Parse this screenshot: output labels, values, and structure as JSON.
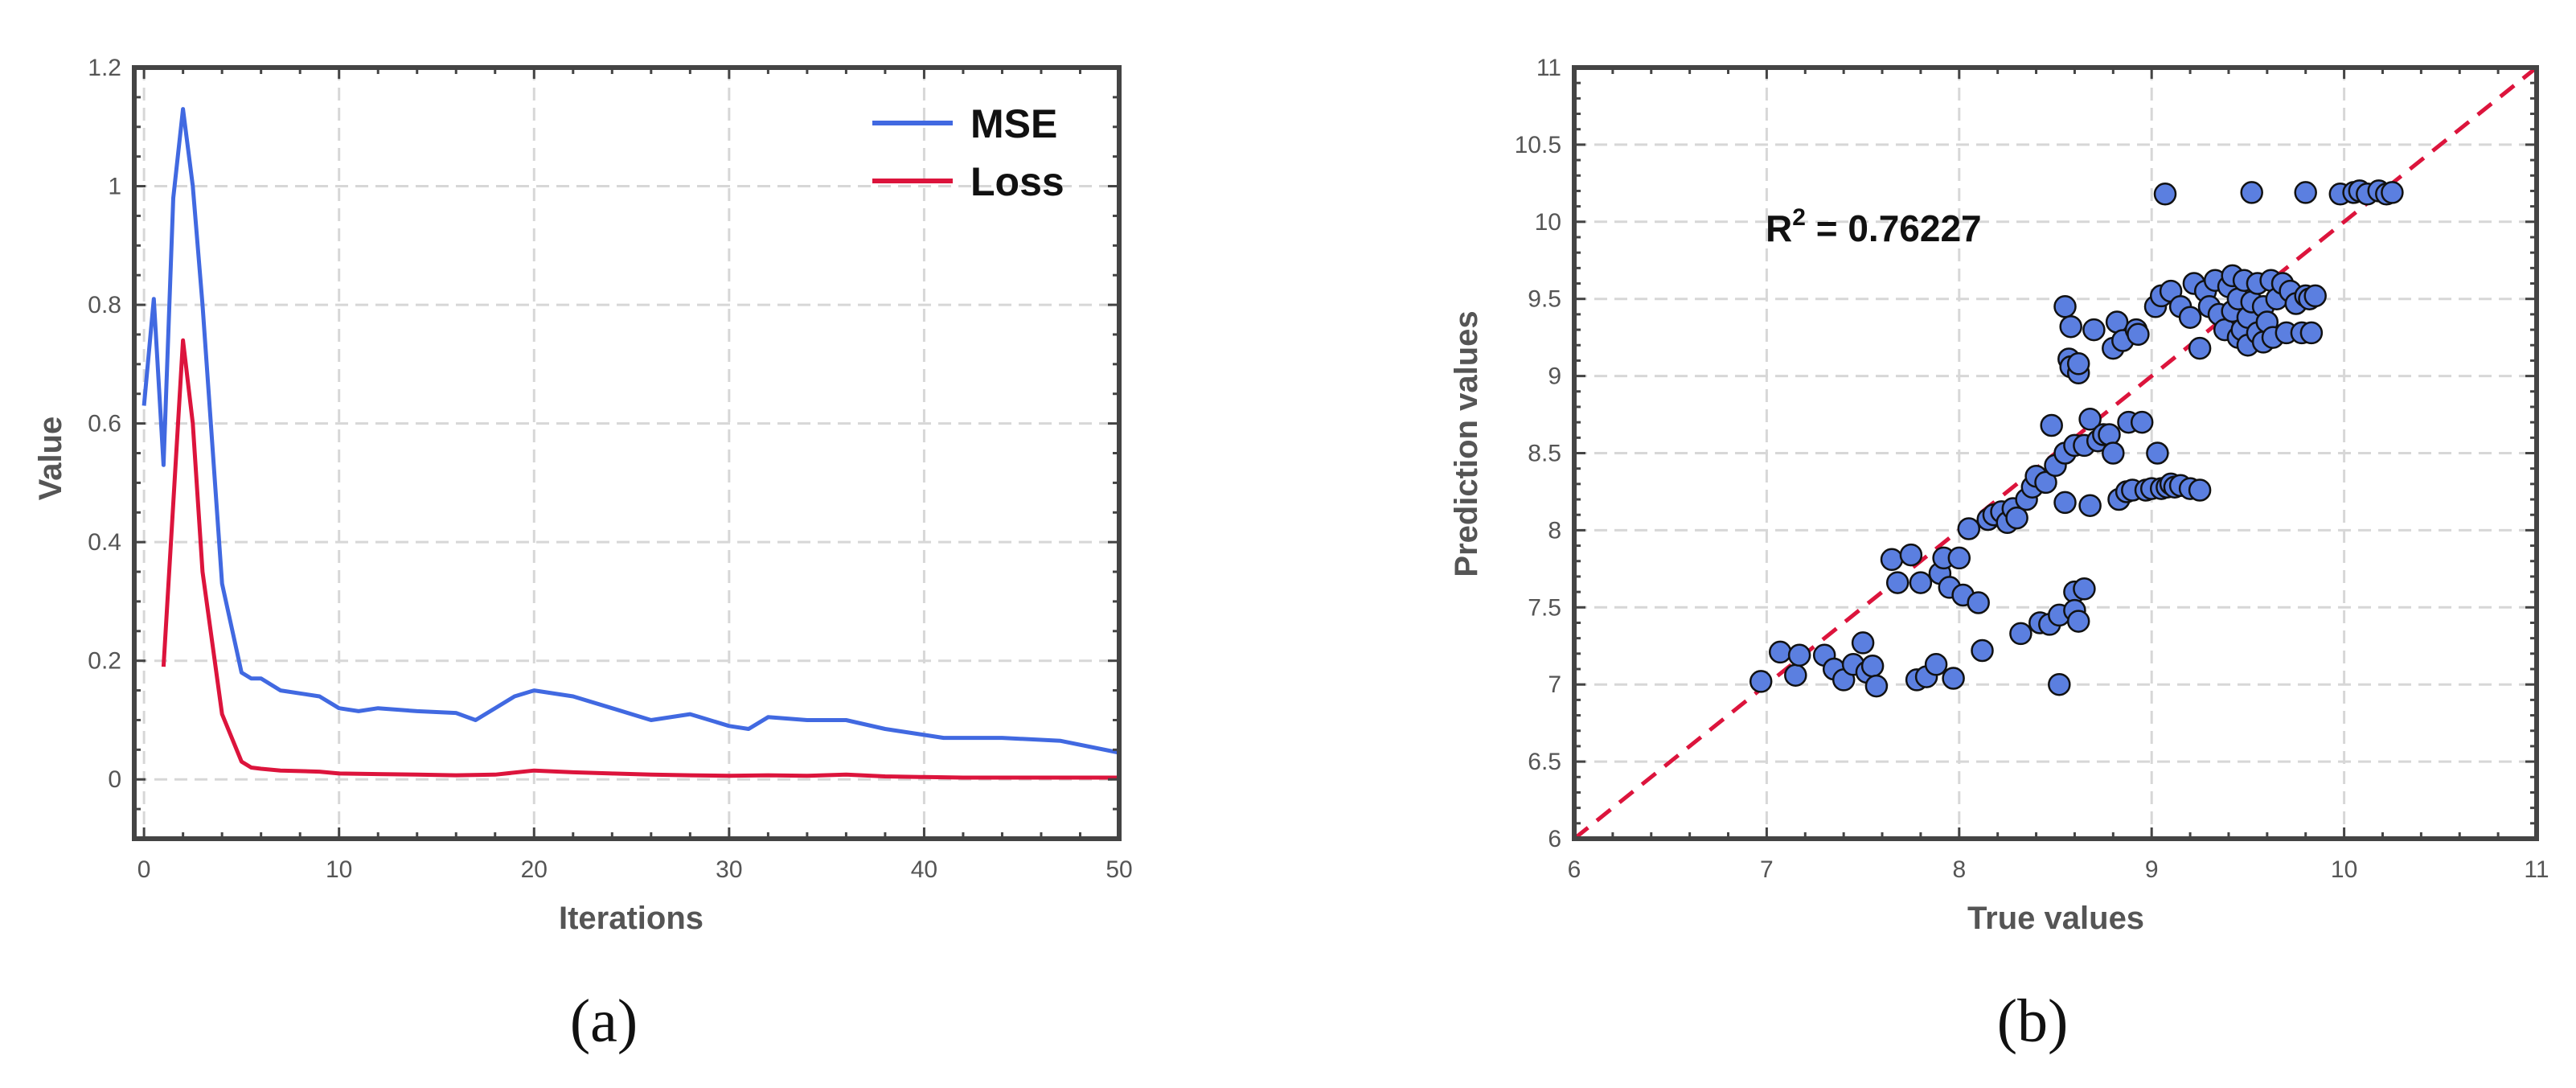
{
  "colors": {
    "mse": "#4169E1",
    "loss": "#DC143C",
    "diag": "#DC143C",
    "point_fill": "#5B7FE0",
    "point_edge": "#111111",
    "axis": "#444444",
    "grid": "#d7d7d7"
  },
  "chart_data": [
    {
      "type": "line",
      "panel_label": "(a)",
      "title": "",
      "xlabel": "Iterations",
      "ylabel": "Value",
      "xlim": [
        -0.5,
        50
      ],
      "ylim": [
        -0.1,
        1.2
      ],
      "grid": true,
      "xticks": [
        0,
        10,
        20,
        30,
        40,
        50
      ],
      "xtick_labels": [
        "0",
        "10",
        "20",
        "30",
        "40",
        "50"
      ],
      "yticks": [
        0,
        0.2,
        0.4,
        0.6,
        0.8,
        1,
        1.2
      ],
      "ytick_labels": [
        "0",
        "0.2",
        "0.4",
        "0.6",
        "0.8",
        "1",
        "1.2"
      ],
      "legend_placement": "top-right",
      "series": [
        {
          "name": "MSE",
          "x": [
            0,
            0.5,
            1,
            1.5,
            2,
            2.5,
            3,
            4,
            5,
            5.5,
            6,
            7,
            8,
            9,
            10,
            11,
            12,
            14,
            16,
            17,
            18,
            19,
            20,
            22,
            24,
            26,
            28,
            30,
            31,
            32,
            34,
            36,
            38,
            40,
            41,
            44,
            47,
            50
          ],
          "y": [
            0.63,
            0.81,
            0.53,
            0.98,
            1.13,
            1.0,
            0.8,
            0.33,
            0.18,
            0.17,
            0.17,
            0.15,
            0.145,
            0.14,
            0.12,
            0.115,
            0.12,
            0.115,
            0.112,
            0.1,
            0.12,
            0.14,
            0.15,
            0.14,
            0.12,
            0.1,
            0.11,
            0.09,
            0.085,
            0.105,
            0.1,
            0.1,
            0.085,
            0.075,
            0.07,
            0.07,
            0.065,
            0.045
          ]
        },
        {
          "name": "Loss",
          "x": [
            1,
            2,
            2.5,
            3,
            4,
            5,
            5.5,
            6,
            7,
            8,
            9,
            10,
            12,
            14,
            16,
            18,
            20,
            22,
            24,
            26,
            28,
            30,
            32,
            34,
            36,
            38,
            40,
            42,
            44,
            46,
            48,
            50
          ],
          "y": [
            0.19,
            0.74,
            0.6,
            0.35,
            0.11,
            0.03,
            0.02,
            0.018,
            0.015,
            0.014,
            0.013,
            0.01,
            0.009,
            0.008,
            0.007,
            0.008,
            0.015,
            0.012,
            0.01,
            0.008,
            0.007,
            0.006,
            0.007,
            0.006,
            0.008,
            0.005,
            0.004,
            0.003,
            0.003,
            0.003,
            0.003,
            0.003
          ]
        }
      ]
    },
    {
      "type": "scatter",
      "panel_label": "(b)",
      "title": "",
      "xlabel": "True values",
      "ylabel": "Prediction values",
      "xlim": [
        6,
        11
      ],
      "ylim": [
        6,
        11
      ],
      "grid": true,
      "xticks": [
        6,
        7,
        8,
        9,
        10,
        11
      ],
      "xtick_labels": [
        "6",
        "7",
        "8",
        "9",
        "10",
        "11"
      ],
      "yticks": [
        6,
        6.5,
        7,
        7.5,
        8,
        8.5,
        9,
        9.5,
        10,
        10.5,
        11
      ],
      "ytick_labels": [
        "6",
        "6.5",
        "7",
        "7.5",
        "8",
        "8.5",
        "9",
        "9.5",
        "10",
        "10.5",
        "11"
      ],
      "annotation": {
        "base": "R",
        "superscript": "2",
        "text": " = 0.76227"
      },
      "reference_line": {
        "from": [
          6,
          6
        ],
        "to": [
          11,
          11
        ],
        "style": "dashed"
      },
      "points": [
        [
          6.97,
          7.02
        ],
        [
          7.07,
          7.21
        ],
        [
          7.15,
          7.06
        ],
        [
          7.17,
          7.19
        ],
        [
          7.3,
          7.19
        ],
        [
          7.35,
          7.1
        ],
        [
          7.4,
          7.03
        ],
        [
          7.45,
          7.13
        ],
        [
          7.5,
          7.27
        ],
        [
          7.52,
          7.08
        ],
        [
          7.55,
          7.12
        ],
        [
          7.57,
          6.99
        ],
        [
          7.65,
          7.81
        ],
        [
          7.68,
          7.66
        ],
        [
          7.75,
          7.84
        ],
        [
          7.8,
          7.66
        ],
        [
          7.78,
          7.03
        ],
        [
          7.83,
          7.05
        ],
        [
          7.88,
          7.13
        ],
        [
          7.9,
          7.72
        ],
        [
          7.92,
          7.82
        ],
        [
          7.95,
          7.63
        ],
        [
          7.97,
          7.04
        ],
        [
          8.0,
          7.82
        ],
        [
          8.02,
          7.58
        ],
        [
          8.05,
          8.01
        ],
        [
          8.1,
          7.53
        ],
        [
          8.12,
          7.22
        ],
        [
          8.15,
          8.07
        ],
        [
          8.18,
          8.1
        ],
        [
          8.22,
          8.12
        ],
        [
          8.25,
          8.05
        ],
        [
          8.28,
          8.14
        ],
        [
          8.3,
          8.08
        ],
        [
          8.32,
          7.33
        ],
        [
          8.35,
          8.2
        ],
        [
          8.38,
          8.28
        ],
        [
          8.4,
          8.35
        ],
        [
          8.42,
          7.4
        ],
        [
          8.45,
          8.31
        ],
        [
          8.47,
          7.39
        ],
        [
          8.48,
          8.68
        ],
        [
          8.5,
          8.42
        ],
        [
          8.52,
          7.0
        ],
        [
          8.52,
          7.45
        ],
        [
          8.55,
          8.5
        ],
        [
          8.55,
          8.18
        ],
        [
          8.57,
          9.11
        ],
        [
          8.58,
          9.06
        ],
        [
          8.6,
          8.55
        ],
        [
          8.6,
          7.6
        ],
        [
          8.6,
          7.48
        ],
        [
          8.62,
          7.41
        ],
        [
          8.62,
          9.02
        ],
        [
          8.65,
          7.62
        ],
        [
          8.55,
          9.45
        ],
        [
          8.58,
          9.32
        ],
        [
          8.62,
          9.08
        ],
        [
          8.65,
          8.55
        ],
        [
          8.68,
          8.72
        ],
        [
          8.68,
          8.16
        ],
        [
          8.7,
          9.3
        ],
        [
          8.72,
          8.58
        ],
        [
          8.75,
          8.62
        ],
        [
          8.78,
          8.62
        ],
        [
          8.8,
          9.18
        ],
        [
          8.8,
          8.5
        ],
        [
          8.82,
          9.35
        ],
        [
          8.83,
          8.2
        ],
        [
          8.85,
          9.23
        ],
        [
          8.87,
          8.25
        ],
        [
          8.88,
          8.7
        ],
        [
          8.9,
          8.26
        ],
        [
          8.92,
          9.3
        ],
        [
          8.93,
          9.27
        ],
        [
          8.95,
          8.7
        ],
        [
          8.97,
          8.26
        ],
        [
          9.0,
          8.27
        ],
        [
          9.03,
          8.5
        ],
        [
          9.05,
          8.27
        ],
        [
          9.08,
          8.28
        ],
        [
          9.1,
          8.3
        ],
        [
          9.12,
          8.28
        ],
        [
          9.15,
          8.29
        ],
        [
          9.2,
          8.27
        ],
        [
          9.25,
          8.26
        ],
        [
          9.02,
          9.45
        ],
        [
          9.05,
          9.52
        ],
        [
          9.07,
          10.18
        ],
        [
          9.1,
          9.55
        ],
        [
          9.15,
          9.45
        ],
        [
          9.2,
          9.38
        ],
        [
          9.22,
          9.6
        ],
        [
          9.25,
          9.18
        ],
        [
          9.28,
          9.55
        ],
        [
          9.3,
          9.45
        ],
        [
          9.33,
          9.62
        ],
        [
          9.35,
          9.4
        ],
        [
          9.38,
          9.3
        ],
        [
          9.4,
          9.58
        ],
        [
          9.42,
          9.65
        ],
        [
          9.42,
          9.42
        ],
        [
          9.45,
          9.25
        ],
        [
          9.45,
          9.5
        ],
        [
          9.47,
          9.3
        ],
        [
          9.48,
          9.62
        ],
        [
          9.5,
          9.2
        ],
        [
          9.5,
          9.38
        ],
        [
          9.52,
          9.48
        ],
        [
          9.52,
          10.19
        ],
        [
          9.55,
          9.28
        ],
        [
          9.55,
          9.6
        ],
        [
          9.58,
          9.22
        ],
        [
          9.58,
          9.45
        ],
        [
          9.6,
          9.35
        ],
        [
          9.62,
          9.62
        ],
        [
          9.63,
          9.25
        ],
        [
          9.65,
          9.5
        ],
        [
          9.68,
          9.6
        ],
        [
          9.7,
          9.28
        ],
        [
          9.72,
          9.55
        ],
        [
          9.75,
          9.47
        ],
        [
          9.78,
          9.28
        ],
        [
          9.8,
          9.52
        ],
        [
          9.82,
          9.5
        ],
        [
          9.83,
          9.28
        ],
        [
          9.8,
          10.19
        ],
        [
          9.85,
          9.52
        ],
        [
          9.98,
          10.18
        ],
        [
          10.05,
          10.19
        ],
        [
          10.08,
          10.2
        ],
        [
          10.12,
          10.18
        ],
        [
          10.18,
          10.2
        ],
        [
          10.22,
          10.18
        ],
        [
          10.25,
          10.19
        ]
      ]
    }
  ]
}
